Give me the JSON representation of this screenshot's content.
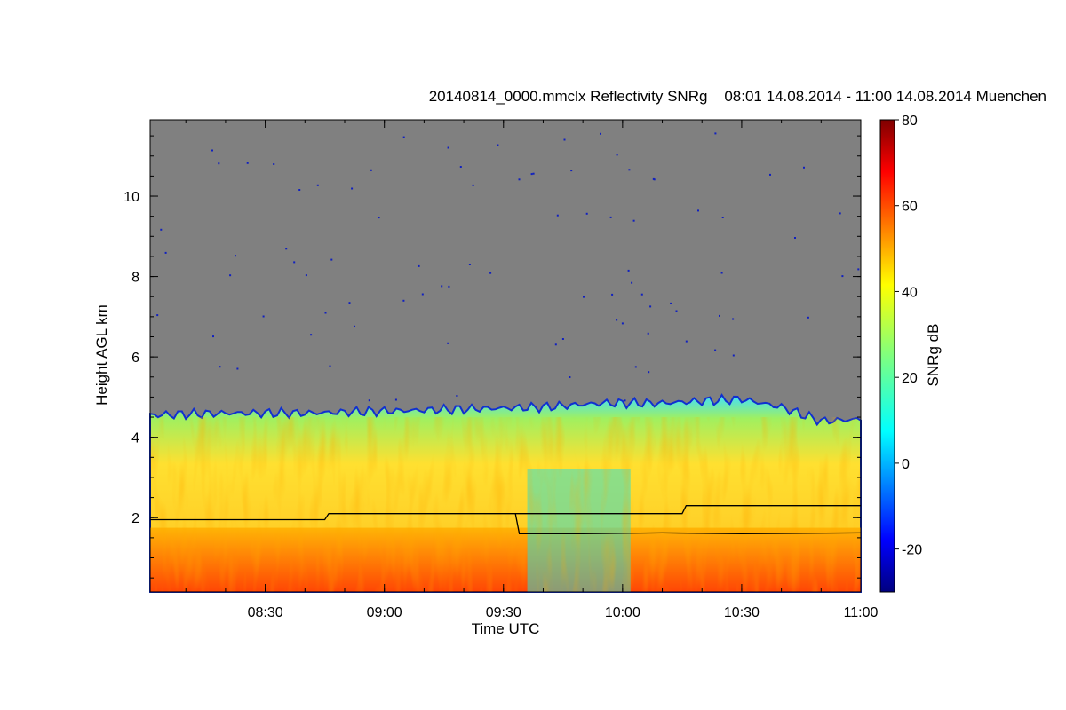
{
  "chart_data": {
    "type": "heatmap",
    "title_left": "20140814_0000.mmclx Reflectivity SNRg",
    "title_right": "08:01 14.08.2014 - 11:00 14.08.2014 Muenchen",
    "xlabel": "Time UTC",
    "ylabel": "Height AGL km",
    "colorbar_label": "SNRg dB",
    "x_range_utc": [
      "08:01",
      "11:00"
    ],
    "x_ticks": [
      "08:30",
      "09:00",
      "09:30",
      "10:00",
      "10:30",
      "11:00"
    ],
    "y_ticks": [
      "2",
      "4",
      "6",
      "8",
      "10"
    ],
    "ylim_km": [
      0.15,
      11.9
    ],
    "colorbar_range": [
      -30,
      80
    ],
    "colorbar_ticks": [
      "-20",
      "0",
      "20",
      "40",
      "60",
      "80"
    ],
    "colormap": "jet",
    "background_color": "#808080",
    "cloud_top_km": [
      {
        "t_min": 1,
        "h": 4.55
      },
      {
        "t_min": 20,
        "h": 4.6
      },
      {
        "t_min": 40,
        "h": 4.6
      },
      {
        "t_min": 60,
        "h": 4.65
      },
      {
        "t_min": 80,
        "h": 4.7
      },
      {
        "t_min": 100,
        "h": 4.75
      },
      {
        "t_min": 115,
        "h": 4.85
      },
      {
        "t_min": 130,
        "h": 4.85
      },
      {
        "t_min": 150,
        "h": 4.95
      },
      {
        "t_min": 160,
        "h": 4.75
      },
      {
        "t_min": 170,
        "h": 4.4
      },
      {
        "t_min": 180,
        "h": 4.45
      }
    ],
    "boundary_line_upper_km": [
      {
        "t_min": 1,
        "h": 1.95
      },
      {
        "t_min": 45,
        "h": 1.95
      },
      {
        "t_min": 46,
        "h": 2.1
      },
      {
        "t_min": 93,
        "h": 2.1
      },
      {
        "t_min": 94,
        "h": 2.1
      },
      {
        "t_min": 135,
        "h": 2.1
      },
      {
        "t_min": 136,
        "h": 2.3
      },
      {
        "t_min": 180,
        "h": 2.3
      }
    ],
    "boundary_line_lower_km": [
      {
        "t_min": 93,
        "h": 2.1
      },
      {
        "t_min": 94,
        "h": 1.6
      },
      {
        "t_min": 110,
        "h": 1.6
      },
      {
        "t_min": 130,
        "h": 1.62
      },
      {
        "t_min": 150,
        "h": 1.6
      },
      {
        "t_min": 180,
        "h": 1.62
      }
    ]
  }
}
